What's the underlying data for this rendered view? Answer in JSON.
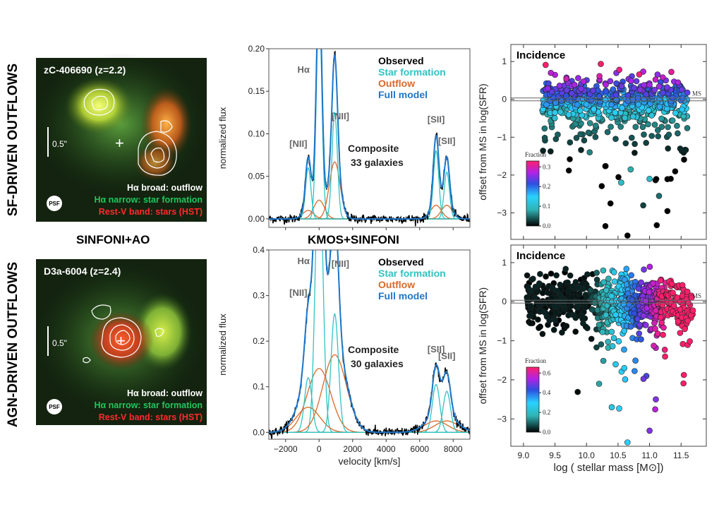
{
  "row_titles": [
    "SF-DRIVEN OUTFLOWS",
    "AGN-DRIVEN OUTFLOWS"
  ],
  "captions": {
    "left": "SINFONI+AO",
    "middle": "KMOS+SINFONI"
  },
  "images": [
    {
      "title": "zC-406690 (z=2.2)",
      "scale": "0.5\"",
      "psf": "PSF",
      "legend": [
        {
          "text": "Hα broad: outflow",
          "color": "#ffffff"
        },
        {
          "text": "Hα narrow: star formation",
          "color": "#22c55e"
        },
        {
          "text": "Rest-V band: stars (HST)",
          "color": "#ff2a2a"
        }
      ]
    },
    {
      "title": "D3a-6004 (z=2.4)",
      "scale": "0.5\"",
      "psf": "PSF",
      "legend": [
        {
          "text": "Hα broad: outflow",
          "color": "#ffffff"
        },
        {
          "text": "Hα narrow: star formation",
          "color": "#22c55e"
        },
        {
          "text": "Rest-V band: stars (HST)",
          "color": "#ff2a2a"
        }
      ]
    }
  ],
  "colors": {
    "observed": "#000000",
    "star_formation": "#2fc4c4",
    "outflow": "#d9692a",
    "full_model": "#1f77c9"
  },
  "chart_data": [
    {
      "type": "line",
      "ylabel": "normalized flux",
      "xlim": [
        -3000,
        9000
      ],
      "ylim": [
        -0.01,
        0.2
      ],
      "yticks": [
        0.0,
        0.05,
        0.1,
        0.15,
        0.2
      ],
      "ytick_labels": [
        "0.00",
        "0.05",
        "0.10",
        "0.15",
        "0.20"
      ],
      "legend": [
        "Observed",
        "Star formation",
        "Outflow",
        "Full model"
      ],
      "composite": [
        "Composite",
        "33 galaxies"
      ],
      "lines": [
        {
          "label": "Hα",
          "x": 0,
          "narrow": 0.255,
          "broad": 0.022
        },
        {
          "label": "[NII]",
          "x": -650,
          "narrow": 0.06,
          "broad": 0.01
        },
        {
          "label": "[NII]",
          "x": 930,
          "narrow": 0.125,
          "broad": 0.067
        },
        {
          "label": "[SII]",
          "x": 6980,
          "narrow": 0.08,
          "broad": 0.016
        },
        {
          "label": "[SII]",
          "x": 7620,
          "narrow": 0.055,
          "broad": 0.016
        }
      ],
      "narrow_sigma": 160,
      "broad_sigma": 320
    },
    {
      "type": "line",
      "ylabel": "normalized flux",
      "xlabel": "velocity [km/s]",
      "xlim": [
        -3000,
        9000
      ],
      "ylim": [
        -0.015,
        0.4
      ],
      "xticks": [
        -2000,
        0,
        2000,
        4000,
        6000,
        8000
      ],
      "yticks": [
        0.0,
        0.1,
        0.2,
        0.3,
        0.4
      ],
      "ytick_labels": [
        "0.0",
        "0.1",
        "0.2",
        "0.3",
        "0.4"
      ],
      "legend": [
        "Observed",
        "Star formation",
        "Outflow",
        "Full model"
      ],
      "composite": [
        "Composite",
        "30 galaxies"
      ],
      "lines": [
        {
          "label": "Hα",
          "x": 0,
          "narrow": 0.62,
          "broad": 0.14
        },
        {
          "label": "[NII]",
          "x": -650,
          "narrow": 0.12,
          "broad": 0.055
        },
        {
          "label": "[NII]",
          "x": 930,
          "narrow": 0.26,
          "broad": 0.17
        },
        {
          "label": "[SII]",
          "x": 6980,
          "narrow": 0.105,
          "broad": 0.025
        },
        {
          "label": "[SII]",
          "x": 7620,
          "narrow": 0.09,
          "broad": 0.025
        }
      ],
      "narrow_sigma": 220,
      "broad_sigma": 700
    },
    {
      "type": "scatter",
      "title": "Incidence",
      "ylabel": "offset from MS in log(SFR)",
      "xlim": [
        8.8,
        11.9
      ],
      "ylim": [
        -3.7,
        1.45
      ],
      "yticks": [
        1,
        0,
        -1,
        -2,
        -3
      ],
      "ms_label": "MS",
      "colorbar": {
        "label": "Fraction",
        "ticks": [
          "0.0",
          "0.1",
          "0.2",
          "0.3"
        ],
        "max": 0.33
      },
      "trend": "sf",
      "count": 700,
      "outliers": [
        {
          "x": 10.38,
          "y": -2.75,
          "f": 0.0
        },
        {
          "x": 10.3,
          "y": -3.35,
          "f": 0.0
        },
        {
          "x": 10.65,
          "y": -3.6,
          "f": 0.0
        },
        {
          "x": 10.9,
          "y": -2.8,
          "f": 0.03
        },
        {
          "x": 11.15,
          "y": -2.55,
          "f": 0.05
        },
        {
          "x": 10.55,
          "y": -2.2,
          "f": 0.1
        },
        {
          "x": 10.7,
          "y": -1.85,
          "f": 0.08
        },
        {
          "x": 10.05,
          "y": -1.4,
          "f": 0.06
        },
        {
          "x": 11.0,
          "y": -2.1,
          "f": 0.1
        }
      ]
    },
    {
      "type": "scatter",
      "title": "Incidence",
      "ylabel": "offset from MS in log(SFR)",
      "xlabel": "log ( stellar mass [M⊙])",
      "xlim": [
        8.8,
        11.9
      ],
      "ylim": [
        -3.7,
        1.45
      ],
      "xticks": [
        9.0,
        9.5,
        10.0,
        10.5,
        11.0,
        11.5
      ],
      "xtick_labels": [
        "9.0",
        "9.5",
        "10.0",
        "10.5",
        "11.0",
        "11.5"
      ],
      "yticks": [
        1,
        0,
        -1,
        -2,
        -3
      ],
      "ms_label": "MS",
      "colorbar": {
        "label": "Fraction",
        "ticks": [
          "0.0",
          "0.2",
          "0.4",
          "0.6"
        ],
        "max": 0.66
      },
      "trend": "agn",
      "count": 780,
      "outliers": [
        {
          "x": 10.65,
          "y": -3.6,
          "f": 0.3
        },
        {
          "x": 11.0,
          "y": -3.3,
          "f": 0.5
        },
        {
          "x": 10.4,
          "y": -2.7,
          "f": 0.25
        },
        {
          "x": 11.1,
          "y": -2.5,
          "f": 0.5
        },
        {
          "x": 10.2,
          "y": -2.1,
          "f": 0.15
        },
        {
          "x": 10.6,
          "y": -1.7,
          "f": 0.3
        },
        {
          "x": 10.95,
          "y": -1.9,
          "f": 0.45
        }
      ]
    }
  ]
}
